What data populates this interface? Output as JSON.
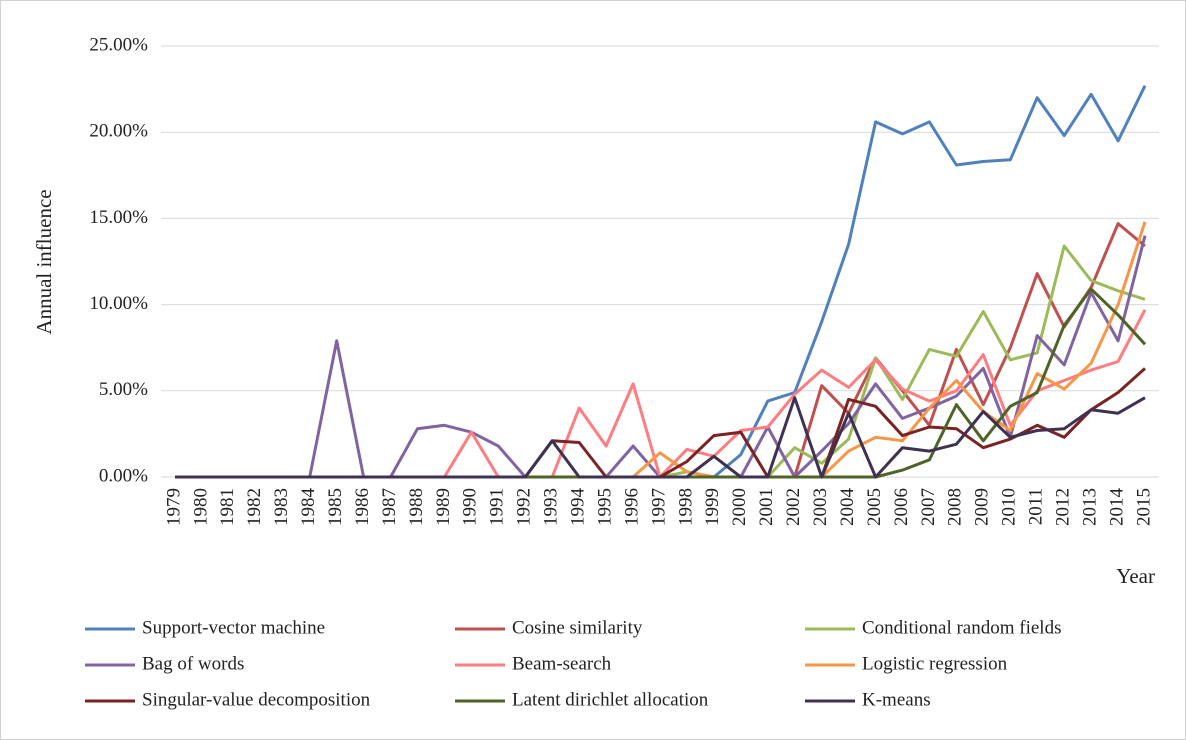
{
  "chart_data": {
    "type": "line",
    "y_label": "Annual influence",
    "x_label": "Year",
    "categories": [
      "1979",
      "1980",
      "1981",
      "1982",
      "1983",
      "1984",
      "1985",
      "1986",
      "1987",
      "1988",
      "1989",
      "1990",
      "1991",
      "1992",
      "1993",
      "1994",
      "1995",
      "1996",
      "1997",
      "1998",
      "1999",
      "2000",
      "2001",
      "2002",
      "2003",
      "2004",
      "2005",
      "2006",
      "2007",
      "2008",
      "2009",
      "2010",
      "2011",
      "2012",
      "2013",
      "2014",
      "2015"
    ],
    "ylim": [
      0,
      25
    ],
    "yticks": [
      {
        "value": 0,
        "label": "0.00%"
      },
      {
        "value": 5,
        "label": "5.00%"
      },
      {
        "value": 10,
        "label": "10.00%"
      },
      {
        "value": 15,
        "label": "15.00%"
      },
      {
        "value": 20,
        "label": "20.00%"
      },
      {
        "value": 25,
        "label": "25.00%"
      }
    ],
    "grid": true,
    "legend": "bottom",
    "series": [
      {
        "name": "Support-vector machine",
        "color": "#4f81bd",
        "values": [
          0,
          0,
          0,
          0,
          0,
          0,
          0,
          0,
          0,
          0,
          0,
          0,
          0,
          0,
          0,
          0,
          0,
          0,
          0,
          0,
          0,
          1.3,
          4.4,
          4.9,
          9.0,
          13.5,
          20.6,
          19.9,
          20.6,
          18.1,
          18.3,
          18.4,
          22.0,
          19.8,
          22.2,
          19.5,
          22.7
        ]
      },
      {
        "name": "Cosine similarity",
        "color": "#c0504d",
        "values": [
          0,
          0,
          0,
          0,
          0,
          0,
          0,
          0,
          0,
          0,
          0,
          0,
          0,
          0,
          0,
          0,
          0,
          0,
          0,
          0,
          0,
          0,
          0,
          0,
          5.3,
          3.7,
          6.9,
          5.0,
          3.0,
          7.4,
          4.2,
          7.5,
          11.8,
          8.7,
          11.0,
          14.7,
          13.4
        ]
      },
      {
        "name": "Conditional random fields",
        "color": "#9bbb59",
        "values": [
          0,
          0,
          0,
          0,
          0,
          0,
          0,
          0,
          0,
          0,
          0,
          0,
          0,
          0,
          0,
          0,
          0,
          0,
          0,
          0.3,
          0,
          0,
          0,
          1.7,
          0.8,
          2.2,
          6.9,
          4.5,
          7.4,
          7.0,
          9.6,
          6.8,
          7.2,
          13.4,
          11.4,
          10.8,
          10.3
        ]
      },
      {
        "name": "Bag of words",
        "color": "#8064a2",
        "values": [
          0,
          0,
          0,
          0,
          0,
          0,
          7.9,
          0,
          0,
          2.8,
          3.0,
          2.6,
          1.8,
          0,
          0,
          0,
          0,
          1.8,
          0,
          0,
          0,
          0,
          2.9,
          0,
          1.5,
          3.1,
          5.4,
          3.4,
          4.0,
          4.7,
          6.3,
          2.3,
          8.2,
          6.5,
          10.7,
          7.9,
          14.0
        ]
      },
      {
        "name": "Beam-search",
        "color": "#ff7c80",
        "values": [
          0,
          0,
          0,
          0,
          0,
          0,
          0,
          0,
          0,
          0,
          0,
          2.6,
          0,
          0,
          0,
          4.0,
          1.8,
          5.4,
          0,
          1.6,
          1.2,
          2.7,
          2.9,
          4.8,
          6.2,
          5.2,
          6.8,
          5.1,
          4.4,
          5.0,
          7.1,
          3.0,
          5.0,
          5.6,
          6.2,
          6.7,
          9.7
        ]
      },
      {
        "name": "Logistic regression",
        "color": "#f79646",
        "values": [
          0,
          0,
          0,
          0,
          0,
          0,
          0,
          0,
          0,
          0,
          0,
          0,
          0,
          0,
          0,
          0,
          0,
          0,
          1.4,
          0.3,
          0,
          0,
          0,
          0,
          0,
          1.5,
          2.3,
          2.1,
          4.0,
          5.6,
          3.8,
          2.7,
          6.0,
          5.1,
          6.6,
          10.0,
          14.8
        ]
      },
      {
        "name": "Singular-value decomposition",
        "color": "#7b2323",
        "values": [
          0,
          0,
          0,
          0,
          0,
          0,
          0,
          0,
          0,
          0,
          0,
          0,
          0,
          0,
          2.1,
          2.0,
          0,
          0,
          0,
          0.9,
          2.4,
          2.6,
          0,
          0,
          0,
          4.5,
          4.1,
          2.4,
          2.9,
          2.8,
          1.7,
          2.2,
          3.0,
          2.3,
          3.9,
          4.9,
          6.3
        ]
      },
      {
        "name": "Latent dirichlet allocation",
        "color": "#4f6228",
        "values": [
          0,
          0,
          0,
          0,
          0,
          0,
          0,
          0,
          0,
          0,
          0,
          0,
          0,
          0,
          0,
          0,
          0,
          0,
          0,
          0,
          0,
          0,
          0,
          0,
          0,
          0,
          0,
          0.4,
          1.0,
          4.2,
          2.1,
          4.1,
          4.9,
          8.8,
          10.9,
          9.4,
          7.7
        ]
      },
      {
        "name": "K-means",
        "color": "#3f3151",
        "values": [
          0,
          0,
          0,
          0,
          0,
          0,
          0,
          0,
          0,
          0,
          0,
          0,
          0,
          0,
          2.1,
          0,
          0,
          0,
          0,
          0,
          1.2,
          0,
          0,
          4.6,
          0,
          3.7,
          0,
          1.7,
          1.5,
          1.9,
          3.8,
          2.3,
          2.7,
          2.8,
          3.9,
          3.7,
          4.6
        ]
      }
    ]
  }
}
